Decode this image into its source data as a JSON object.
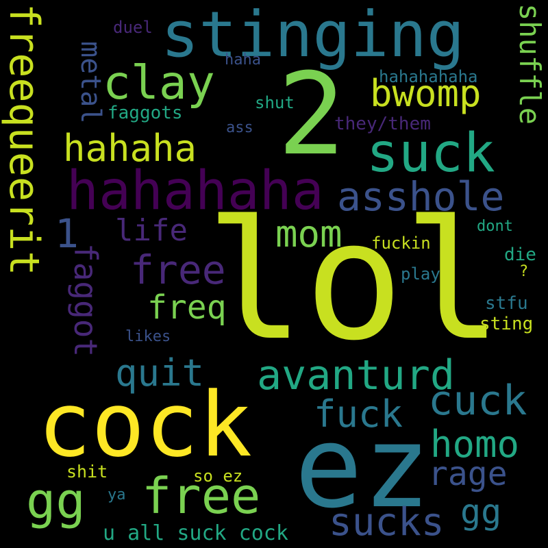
{
  "words": {
    "lol": "lol",
    "cock": "cock",
    "ez": "ez",
    "two": "2",
    "stinging": "stinging",
    "hahahaha": "hahahaha",
    "clay": "clay",
    "suck": "suck",
    "freequeerit": "freequeerit",
    "hahaha": "hahaha",
    "bwomp": "bwomp",
    "shuffle": "shuffle",
    "metal": "metal",
    "asshole": "asshole",
    "faggot": "faggot",
    "life": "life",
    "one": "1",
    "mom": "mom",
    "free_mid": "free",
    "freq": "freq",
    "quit": "quit",
    "avanturd": "avanturd",
    "fuck": "fuck",
    "cuck": "cuck",
    "homo": "homo",
    "rage": "rage",
    "gg_left": "gg",
    "free_bottom": "free",
    "sucks": "sucks",
    "gg_right": "gg",
    "u_all_suck_cock": "u all suck cock",
    "shit": "shit",
    "so_ez": "so ez",
    "ya": "ya",
    "duel": "duel",
    "haha": "haha",
    "hahahahaha": "hahahahaha",
    "shut": "shut",
    "faggots": "faggots",
    "ass": "ass",
    "they_them": "they/them",
    "fuckin": "fuckin",
    "dont": "dont",
    "die": "die",
    "question": "?",
    "play": "play",
    "stfu": "stfu",
    "sting": "sting",
    "likes": "likes"
  },
  "colors": {
    "background": "#000000",
    "yellow": "#fde725",
    "lime": "#c8e020",
    "green": "#7ad151",
    "emerald": "#22a884",
    "teal": "#2a788e",
    "blue": "#3b528b",
    "purple": "#482878",
    "dark_purple": "#440154"
  }
}
